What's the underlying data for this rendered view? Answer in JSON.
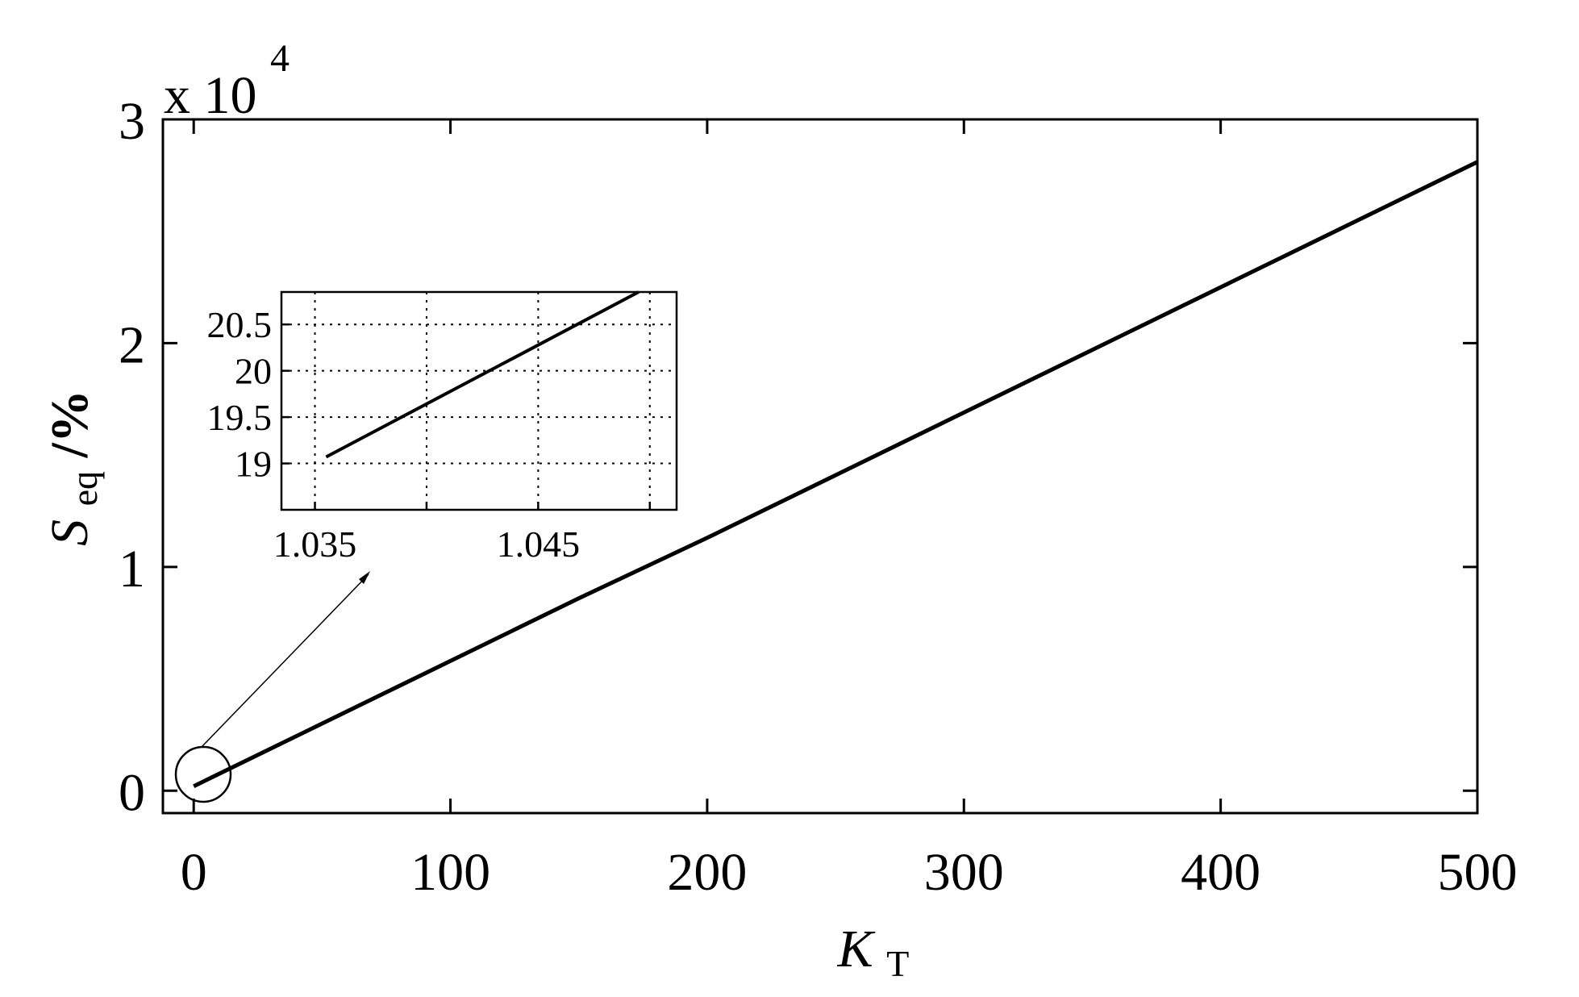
{
  "chart_data": [
    {
      "type": "line",
      "xlabel_main": "K",
      "xlabel_sub": "T",
      "ylabel_main": "S",
      "ylabel_sub": "eq",
      "ylabel_unit": "/%",
      "y_multiplier_text": "x 10",
      "y_multiplier_exp": "4",
      "xlim": [
        -12,
        500
      ],
      "ylim": [
        -0.1,
        3
      ],
      "y_scale_factor": 10000,
      "xticks": [
        0,
        100,
        200,
        300,
        400,
        500
      ],
      "xtick_labels": [
        "0",
        "100",
        "200",
        "300",
        "400",
        "500"
      ],
      "yticks": [
        0,
        1,
        2,
        3
      ],
      "ytick_labels": [
        "0",
        "1",
        "2",
        "3"
      ],
      "grid": false,
      "legend": "none",
      "series": [
        {
          "x": [
            0,
            50,
            100,
            150,
            200,
            250,
            300,
            350,
            400,
            450,
            500
          ],
          "y": [
            0.02,
            0.3,
            0.58,
            0.86,
            1.13,
            1.41,
            1.69,
            1.97,
            2.25,
            2.53,
            2.81
          ]
        }
      ]
    },
    {
      "type": "line",
      "role": "inset",
      "xlim": [
        1.0335,
        1.0512
      ],
      "ylim": [
        18.5,
        20.85
      ],
      "xticks": [
        1.035,
        1.045
      ],
      "xtick_labels": [
        "1.035",
        "1.045"
      ],
      "x_gridlines": [
        1.035,
        1.04,
        1.045,
        1.05
      ],
      "yticks": [
        19,
        19.5,
        20,
        20.5
      ],
      "ytick_labels": [
        "19",
        "19.5",
        "20",
        "20.5"
      ],
      "grid": true,
      "legend": "none",
      "series": [
        {
          "x": [
            1.0355,
            1.0495
          ],
          "y": [
            19.07,
            20.85
          ]
        }
      ]
    }
  ]
}
